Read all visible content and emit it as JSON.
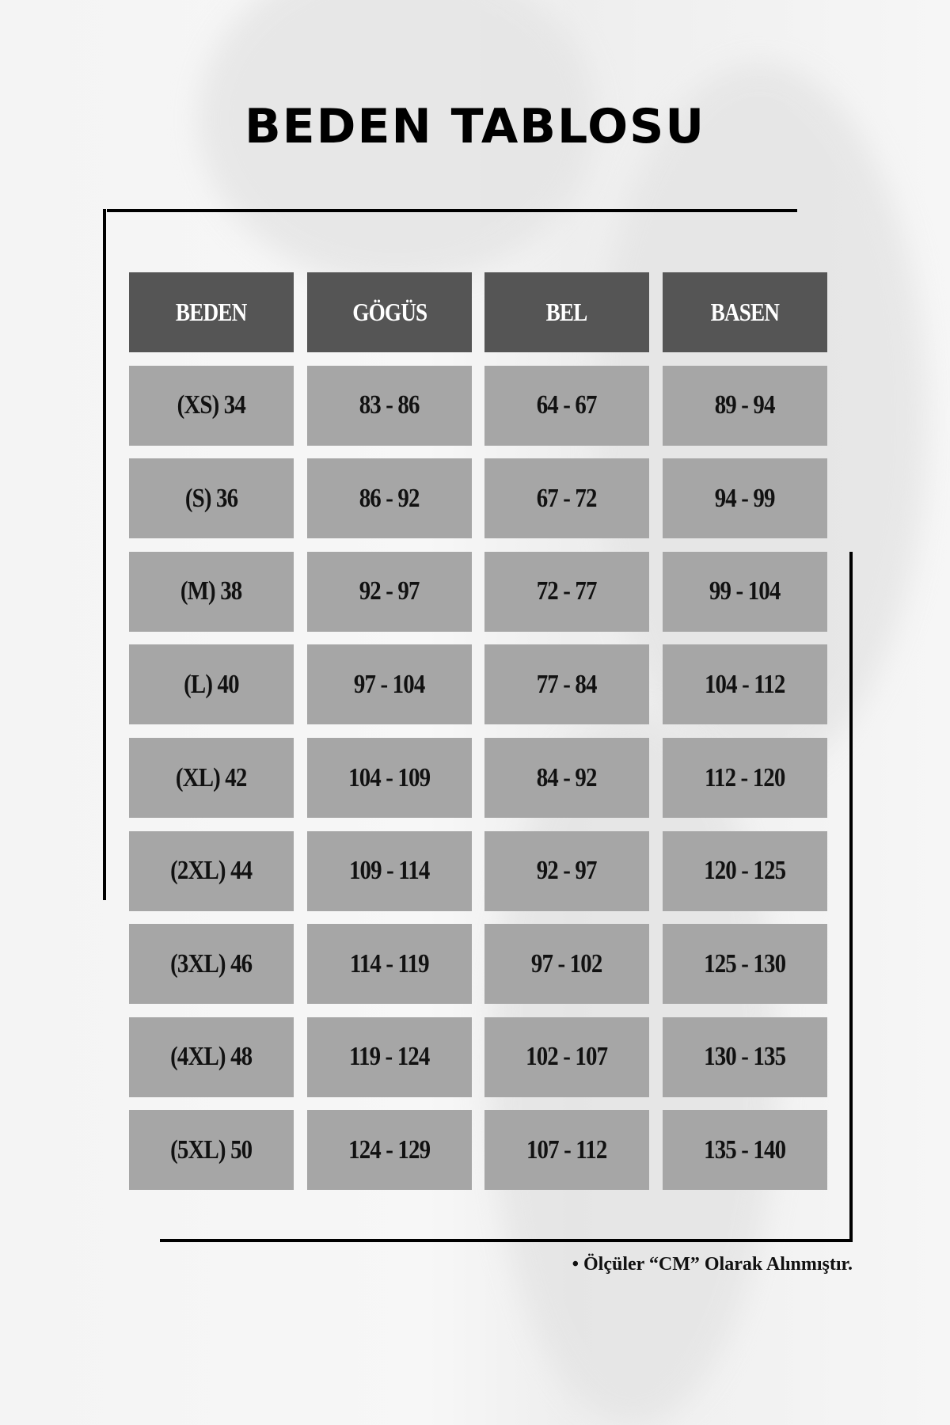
{
  "title": "BEDEN TABLOSU",
  "table": {
    "headers": [
      "BEDEN",
      "GÖGÜS",
      "BEL",
      "BASEN"
    ],
    "rows": [
      [
        "(XS) 34",
        "83 - 86",
        "64 - 67",
        "89 - 94"
      ],
      [
        "(S) 36",
        "86 - 92",
        "67 - 72",
        "94 - 99"
      ],
      [
        "(M) 38",
        "92 - 97",
        "72 - 77",
        "99 - 104"
      ],
      [
        "(L) 40",
        "97 - 104",
        "77 - 84",
        "104 - 112"
      ],
      [
        "(XL) 42",
        "104 - 109",
        "84 - 92",
        "112 - 120"
      ],
      [
        "(2XL) 44",
        "109 - 114",
        "92 - 97",
        "120 - 125"
      ],
      [
        "(3XL) 46",
        "114 - 119",
        "97 - 102",
        "125 - 130"
      ],
      [
        "(4XL) 48",
        "119 - 124",
        "102 - 107",
        "130 - 135"
      ],
      [
        "(5XL) 50",
        "124 - 129",
        "107 - 112",
        "135 - 140"
      ]
    ]
  },
  "note": "• Ölçüler “CM” Olarak Alınmıştır.",
  "colors": {
    "header_bg": "#555555",
    "cell_bg": "#a6a6a6",
    "frame": "#000000"
  }
}
